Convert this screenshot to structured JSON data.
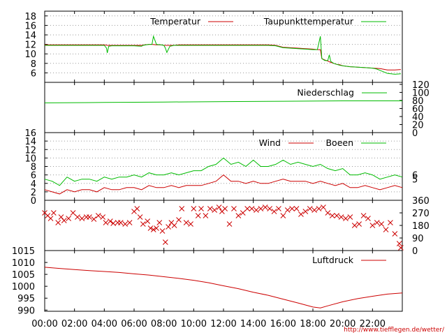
{
  "credit": "http://www.tiefflegen.de/wetter/",
  "colors": {
    "red": "#cc0000",
    "green": "#00bb00",
    "grid": "#9a9a9a",
    "axis": "#000000"
  },
  "chart_data": [
    {
      "type": "line",
      "name": "temperature",
      "series": [
        {
          "name": "Temperatur",
          "color": "#cc0000",
          "x": [
            0.0,
            0.5,
            1.0,
            1.5,
            2.0,
            2.5,
            3.0,
            3.5,
            4.0,
            4.2,
            4.3,
            4.5,
            5.0,
            5.5,
            6.0,
            6.5,
            6.7,
            7.0,
            7.2,
            7.5,
            7.8,
            8.0,
            8.1,
            8.3,
            8.6,
            9.0,
            9.5,
            10.0,
            10.5,
            11.0,
            11.5,
            12.0,
            12.5,
            13.0,
            13.5,
            14.0,
            14.5,
            15.0,
            15.5,
            16.0,
            16.5,
            17.0,
            17.5,
            18.0,
            18.3,
            18.5,
            18.6,
            18.8,
            19.0,
            19.2,
            19.4,
            19.6,
            19.8,
            20.0,
            20.5,
            21.0,
            21.5,
            22.0,
            22.5,
            23.0,
            23.5,
            23.9
          ],
          "y": [
            11.9,
            11.9,
            11.9,
            11.9,
            11.9,
            11.9,
            11.9,
            11.9,
            11.9,
            11.8,
            11.8,
            11.8,
            11.8,
            11.8,
            11.8,
            11.8,
            11.9,
            12.0,
            12.0,
            11.9,
            11.9,
            11.8,
            11.8,
            11.8,
            11.8,
            11.9,
            11.9,
            11.9,
            11.9,
            11.9,
            11.9,
            11.9,
            11.9,
            11.9,
            11.9,
            11.9,
            11.9,
            11.9,
            11.8,
            11.4,
            11.3,
            11.2,
            11.1,
            11.0,
            10.9,
            10.9,
            9.0,
            8.7,
            8.5,
            8.2,
            8.0,
            7.8,
            7.7,
            7.5,
            7.3,
            7.2,
            7.1,
            7.0,
            6.9,
            6.6,
            6.6,
            6.7
          ]
        },
        {
          "name": "Taupunkttemperatur",
          "color": "#00bb00",
          "x": [
            0.0,
            0.5,
            1.0,
            1.5,
            2.0,
            2.5,
            3.0,
            3.5,
            4.0,
            4.15,
            4.2,
            4.3,
            4.5,
            5.0,
            5.5,
            6.0,
            6.5,
            6.6,
            6.8,
            7.0,
            7.2,
            7.3,
            7.5,
            7.8,
            8.0,
            8.1,
            8.2,
            8.4,
            8.7,
            9.0,
            9.5,
            10.0,
            10.5,
            11.0,
            11.5,
            12.0,
            12.5,
            13.0,
            13.5,
            14.0,
            14.5,
            15.0,
            15.5,
            16.0,
            16.5,
            17.0,
            17.5,
            18.0,
            18.3,
            18.5,
            18.6,
            18.8,
            19.0,
            19.1,
            19.2,
            19.4,
            19.6,
            19.8,
            20.0,
            20.5,
            21.0,
            21.5,
            22.0,
            22.3,
            22.6,
            23.0,
            23.5,
            23.9
          ],
          "y": [
            11.8,
            11.8,
            11.8,
            11.8,
            11.8,
            11.8,
            11.8,
            11.8,
            11.8,
            11.2,
            10.2,
            11.6,
            11.7,
            11.7,
            11.7,
            11.7,
            11.6,
            11.8,
            11.9,
            12.0,
            12.0,
            13.7,
            12.0,
            11.9,
            11.8,
            11.2,
            10.3,
            11.6,
            11.8,
            11.8,
            11.8,
            11.8,
            11.8,
            11.8,
            11.8,
            11.8,
            11.8,
            11.8,
            11.8,
            11.8,
            11.8,
            11.8,
            11.7,
            11.3,
            11.2,
            11.1,
            11.0,
            10.9,
            10.9,
            13.7,
            9.0,
            8.6,
            8.6,
            9.8,
            8.4,
            8.0,
            7.8,
            7.6,
            7.5,
            7.3,
            7.2,
            7.1,
            7.0,
            6.8,
            6.4,
            5.9,
            5.7,
            5.8
          ]
        }
      ],
      "ylim": [
        4,
        19
      ],
      "yticks": [
        6,
        8,
        10,
        12,
        14,
        16,
        18
      ]
    },
    {
      "type": "line",
      "name": "precipitation",
      "series": [
        {
          "name": "Niederschlag",
          "color": "#00bb00",
          "x": [
            0,
            4,
            8,
            12,
            16,
            20,
            24
          ],
          "y": [
            74,
            75,
            76,
            77,
            78,
            79,
            79
          ]
        }
      ],
      "ylim": [
        0,
        125
      ],
      "yticks_right": [
        0,
        20,
        40,
        60,
        80,
        100,
        120
      ]
    },
    {
      "type": "line",
      "name": "wind",
      "series": [
        {
          "name": "Wind",
          "color": "#cc0000",
          "x": [
            0,
            0.5,
            1,
            1.5,
            2,
            2.5,
            3,
            3.5,
            4,
            4.5,
            5,
            5.5,
            6,
            6.5,
            7,
            7.5,
            8,
            8.5,
            9,
            9.5,
            10,
            10.5,
            11,
            11.5,
            12,
            12.5,
            13,
            13.5,
            14,
            14.5,
            15,
            15.5,
            16,
            16.5,
            17,
            17.5,
            18,
            18.5,
            19,
            19.5,
            20,
            20.5,
            21,
            21.5,
            22,
            22.5,
            23,
            23.5,
            24
          ],
          "y": [
            2.5,
            2.0,
            1.5,
            2.5,
            2.0,
            2.5,
            2.5,
            2.0,
            3.0,
            2.5,
            2.5,
            3.0,
            3.0,
            2.5,
            3.5,
            3.0,
            3.0,
            3.5,
            3.0,
            3.5,
            3.5,
            3.5,
            4.0,
            4.5,
            6.0,
            4.5,
            4.5,
            4.0,
            4.5,
            4.0,
            4.0,
            4.5,
            5.0,
            4.5,
            4.5,
            4.5,
            4.0,
            4.5,
            4.0,
            3.5,
            4.0,
            3.0,
            3.0,
            3.5,
            3.0,
            2.5,
            3.0,
            3.5,
            3.0
          ]
        },
        {
          "name": "Boeen",
          "color": "#00bb00",
          "x": [
            0,
            0.5,
            1,
            1.5,
            2,
            2.5,
            3,
            3.5,
            4,
            4.5,
            5,
            5.5,
            6,
            6.5,
            7,
            7.5,
            8,
            8.5,
            9,
            9.5,
            10,
            10.5,
            11,
            11.5,
            12,
            12.5,
            13,
            13.5,
            14,
            14.5,
            15,
            15.5,
            16,
            16.5,
            17,
            17.5,
            18,
            18.5,
            19,
            19.5,
            20,
            20.5,
            21,
            21.5,
            22,
            22.5,
            23,
            23.5,
            24
          ],
          "y": [
            5.0,
            4.5,
            3.5,
            5.5,
            4.5,
            5.0,
            5.0,
            4.5,
            5.5,
            5.0,
            5.5,
            5.5,
            6.0,
            5.5,
            6.5,
            6.0,
            6.0,
            6.5,
            6.0,
            6.5,
            7.0,
            7.0,
            8.0,
            8.5,
            10.0,
            8.5,
            9.0,
            8.0,
            9.5,
            8.0,
            8.0,
            8.5,
            9.5,
            8.5,
            9.0,
            8.5,
            8.0,
            8.5,
            7.5,
            7.0,
            7.5,
            6.0,
            6.0,
            6.5,
            6.0,
            5.0,
            5.5,
            6.0,
            5.5
          ]
        }
      ],
      "ylim": [
        0,
        16
      ],
      "yticks": [
        0,
        2,
        4,
        6,
        8,
        10,
        12,
        14,
        16
      ],
      "yticks_right": [
        5,
        6
      ]
    },
    {
      "type": "scatter",
      "name": "wind-direction",
      "series": [
        {
          "color": "#cc0000",
          "x": [
            0.0,
            0.2,
            0.4,
            0.6,
            0.9,
            1.1,
            1.3,
            1.6,
            1.9,
            2.2,
            2.5,
            2.8,
            3.0,
            3.3,
            3.6,
            3.9,
            4.1,
            4.4,
            4.6,
            4.9,
            5.1,
            5.4,
            5.7,
            6.0,
            6.2,
            6.4,
            6.6,
            6.9,
            7.1,
            7.3,
            7.5,
            7.7,
            7.9,
            8.1,
            8.3,
            8.5,
            8.7,
            9.0,
            9.2,
            9.5,
            9.8,
            10.0,
            10.3,
            10.5,
            10.8,
            11.1,
            11.4,
            11.7,
            11.9,
            12.1,
            12.4,
            12.7,
            13.0,
            13.3,
            13.6,
            13.9,
            14.2,
            14.5,
            14.8,
            15.1,
            15.4,
            15.7,
            16.0,
            16.3,
            16.6,
            16.9,
            17.2,
            17.5,
            17.8,
            18.1,
            18.4,
            18.7,
            19.0,
            19.3,
            19.6,
            19.9,
            20.2,
            20.5,
            20.8,
            21.1,
            21.4,
            21.7,
            22.0,
            22.3,
            22.6,
            22.9,
            23.2,
            23.5,
            23.8,
            23.9
          ],
          "y": [
            270,
            250,
            230,
            270,
            200,
            240,
            215,
            230,
            270,
            240,
            230,
            240,
            240,
            225,
            250,
            240,
            200,
            210,
            195,
            200,
            200,
            190,
            200,
            280,
            300,
            240,
            190,
            210,
            160,
            150,
            160,
            200,
            140,
            60,
            170,
            200,
            180,
            220,
            300,
            200,
            190,
            300,
            250,
            300,
            250,
            300,
            290,
            310,
            280,
            300,
            190,
            300,
            250,
            270,
            300,
            300,
            290,
            300,
            310,
            300,
            280,
            300,
            250,
            290,
            300,
            300,
            260,
            280,
            300,
            290,
            300,
            310,
            270,
            250,
            250,
            240,
            230,
            240,
            180,
            190,
            250,
            230,
            180,
            200,
            190,
            150,
            200,
            120,
            50,
            20
          ]
        }
      ],
      "ylim": [
        0,
        360
      ],
      "yticks_right": [
        0,
        90,
        180,
        270,
        360
      ]
    },
    {
      "type": "line",
      "name": "pressure",
      "series": [
        {
          "name": "Luftdruck",
          "color": "#cc0000",
          "x": [
            0,
            1,
            2,
            3,
            4,
            5,
            6,
            7,
            8,
            9,
            10,
            11,
            12,
            13,
            14,
            15,
            16,
            17,
            18,
            18.5,
            19,
            20,
            21,
            22,
            23,
            24
          ],
          "y": [
            1008.0,
            1007.5,
            1007.0,
            1006.6,
            1006.2,
            1005.8,
            1005.2,
            1004.7,
            1004.0,
            1003.3,
            1002.5,
            1001.5,
            1000.2,
            999.0,
            997.5,
            996.2,
            994.6,
            993.0,
            991.3,
            990.9,
            991.8,
            993.5,
            994.8,
            995.8,
            996.7,
            997.2
          ]
        }
      ],
      "ylim": [
        989.5,
        1015
      ],
      "yticks": [
        990,
        995,
        1000,
        1005,
        1010,
        1015
      ]
    }
  ],
  "x_axis": {
    "xlim": [
      0,
      24
    ],
    "ticks": [
      0,
      2,
      4,
      6,
      8,
      10,
      12,
      14,
      16,
      18,
      20,
      22
    ],
    "tick_labels": [
      "00:00",
      "02:00",
      "04:00",
      "06:00",
      "08:00",
      "10:00",
      "12:00",
      "14:00",
      "16:00",
      "18:00",
      "20:00",
      "22:00"
    ]
  }
}
